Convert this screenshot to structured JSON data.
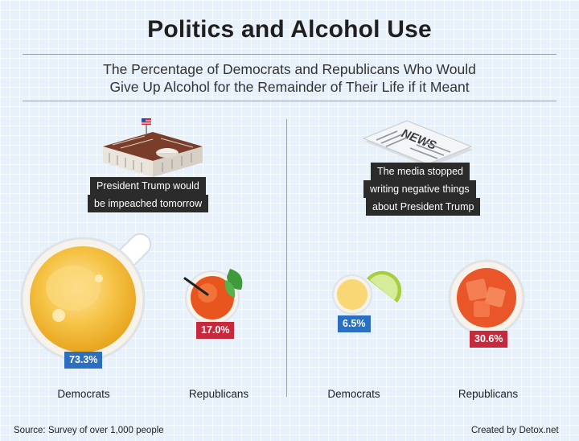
{
  "title": "Politics and Alcohol Use",
  "subtitle_line1": "The Percentage of Democrats and Republicans Who Would",
  "subtitle_line2": "Give Up Alcohol for the Remainder of Their Life if it Meant",
  "chart_data": [
    {
      "type": "bar",
      "title": "President Trump would be impeached tomorrow",
      "title_lines": [
        "President Trump would",
        "be impeached tomorrow"
      ],
      "categories": [
        "Democrats",
        "Republicans"
      ],
      "values": [
        73.3,
        17.0
      ],
      "value_labels": [
        "73.3%",
        "17.0%"
      ],
      "colors": [
        "#2b6fc0",
        "#c8283b"
      ]
    },
    {
      "type": "bar",
      "title": "The media stopped writing negative things about President Trump",
      "title_lines": [
        "The media stopped",
        "writing negative things",
        "about President Trump"
      ],
      "categories": [
        "Democrats",
        "Republicans"
      ],
      "values": [
        6.5,
        30.6
      ],
      "value_labels": [
        "6.5%",
        "30.6%"
      ],
      "colors": [
        "#2b6fc0",
        "#c8283b"
      ]
    }
  ],
  "icons": {
    "left": "white-house-icon",
    "right": "newspaper-icon",
    "newspaper_text": "NEWS"
  },
  "footer": {
    "source": "Source: Survey of over 1,000 people",
    "credit": "Created by Detox.net"
  }
}
